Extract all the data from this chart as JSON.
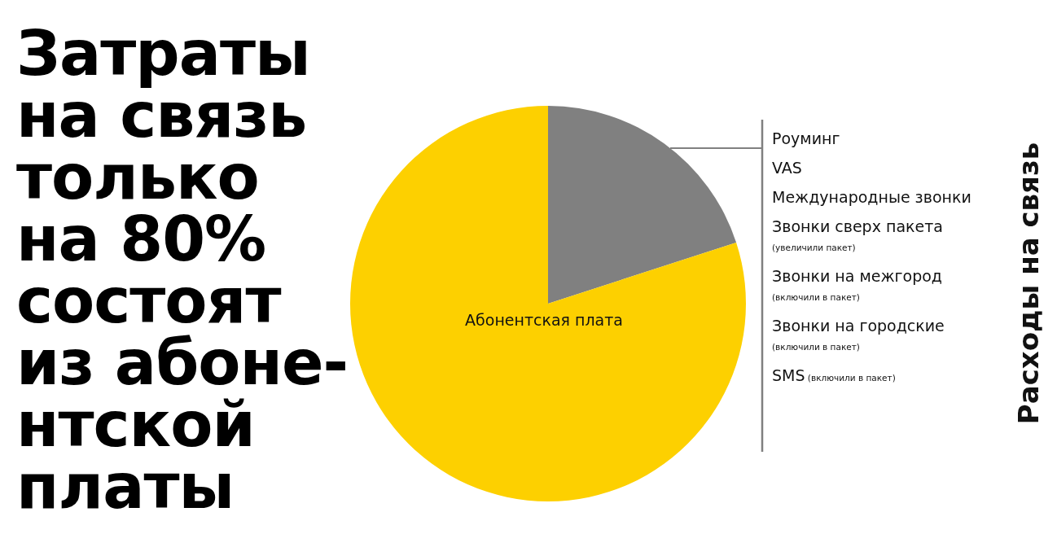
{
  "chart_data": {
    "type": "pie",
    "title": "Затраты\nна связь\nтолько\nна 80%\nсостоят\nиз абоне-\nнтской\nплаты",
    "categories": [
      null,
      "Абонентская плата"
    ],
    "values": [
      20,
      80
    ],
    "colors": [
      "#808080",
      "#fdd000"
    ],
    "annotations": [
      "Роуминг",
      "VAS",
      "Международные звонки",
      "Звонки сверх пакета (увеличили пакет)",
      "Звонки на межгород (включили в пакет)",
      "Звонки на городские (включили в пакет)",
      "SMS (включили в пакет)",
      "Расходы на связь"
    ]
  }
}
